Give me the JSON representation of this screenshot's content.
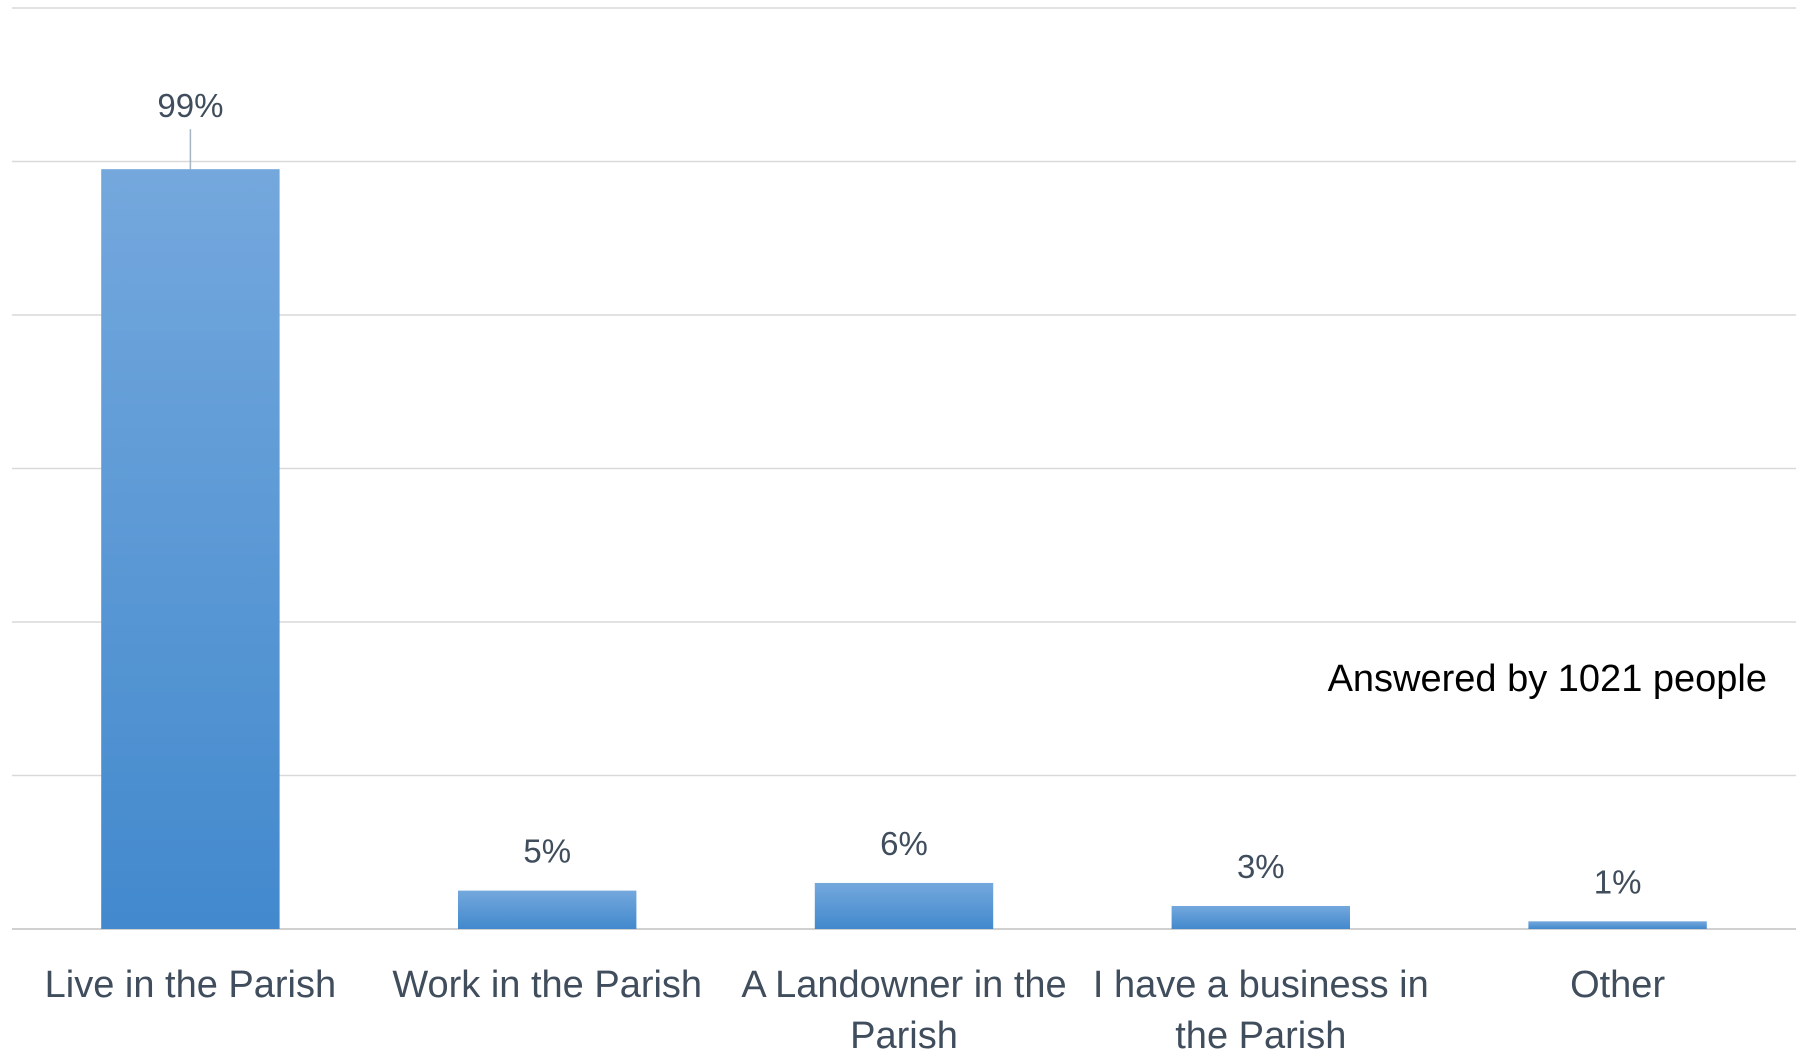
{
  "chart_data": {
    "type": "bar",
    "categories": [
      [
        "Live in the Parish"
      ],
      [
        "Work in the Parish"
      ],
      [
        "A Landowner in the",
        "Parish"
      ],
      [
        "I have a business in",
        "the Parish"
      ],
      [
        "Other"
      ]
    ],
    "values": [
      99,
      5,
      6,
      3,
      1
    ],
    "data_labels": [
      "99%",
      "5%",
      "6%",
      "3%",
      "1%"
    ],
    "ylim": [
      0,
      120
    ],
    "gridlines": [
      0,
      20,
      40,
      60,
      80,
      100,
      120
    ],
    "grid": true,
    "annotation": "Answered by 1021 people",
    "colors": {
      "bar_top": "#74a8dd",
      "bar_bottom": "#4289cd",
      "grid": "#d9d9d9",
      "text": "#404d5c"
    }
  }
}
